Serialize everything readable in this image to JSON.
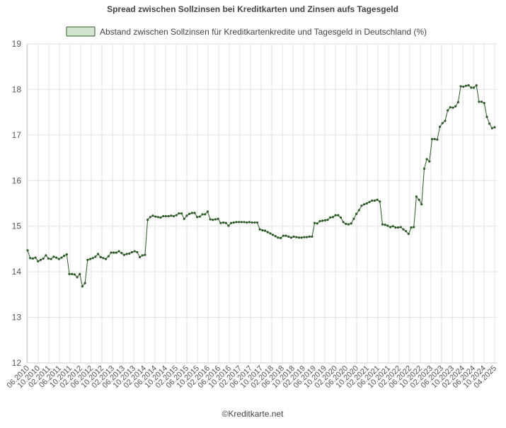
{
  "chart_data": {
    "type": "line",
    "title": "Spread zwischen Sollzinsen bei Kreditkarten und Zinsen aufs Tagesgeld",
    "legend": {
      "placement": "top-center"
    },
    "credit": "©Kreditkarte.net",
    "xlabel": "",
    "ylabel": "",
    "ylim": [
      12,
      19
    ],
    "yticks": [
      12,
      13,
      14,
      15,
      16,
      17,
      18,
      19
    ],
    "grid": true,
    "xtick_labels": [
      "06.2010",
      "10.2010",
      "02.2011",
      "06.2011",
      "10.2011",
      "02.2012",
      "06.2012",
      "10.2012",
      "02.2013",
      "06.2013",
      "10.2013",
      "02.2014",
      "06.2014",
      "10.2014",
      "02.2015",
      "06.2015",
      "10.2015",
      "02.2016",
      "06.2016",
      "10.2016",
      "02.2017",
      "06.2017",
      "10.2017",
      "02.2018",
      "06.2018",
      "10.2018",
      "02.2019",
      "06.2019",
      "10.2019",
      "02.2020",
      "06.2020",
      "10.2020",
      "02.2021",
      "06.2021",
      "10.2021",
      "02.2022",
      "06.2022",
      "10.2022",
      "02.2023",
      "06.2023",
      "10.2023",
      "02.2024",
      "06.2024",
      "10.2024",
      "04.2025"
    ],
    "colors": {
      "line": "#2d5a27",
      "legend_fill": "#d4e4d0",
      "legend_border": "#2d5a27"
    },
    "series": [
      {
        "name": "Abstand zwischen Sollzinsen für Kreditkartenkredite und Tagesgeld in Deutschland (%)",
        "values": [
          14.47,
          14.3,
          14.29,
          14.31,
          14.23,
          14.26,
          14.29,
          14.36,
          14.29,
          14.28,
          14.33,
          14.31,
          14.28,
          14.31,
          14.35,
          14.38,
          13.95,
          13.95,
          13.94,
          13.88,
          13.95,
          13.68,
          13.75,
          14.26,
          14.28,
          14.3,
          14.33,
          14.39,
          14.32,
          14.3,
          14.28,
          14.34,
          14.42,
          14.42,
          14.42,
          14.45,
          14.41,
          14.37,
          14.39,
          14.4,
          14.43,
          14.45,
          14.43,
          14.32,
          14.36,
          14.37,
          15.14,
          15.2,
          15.23,
          15.21,
          15.2,
          15.19,
          15.22,
          15.22,
          15.22,
          15.23,
          15.22,
          15.24,
          15.28,
          15.28,
          15.16,
          15.23,
          15.27,
          15.29,
          15.29,
          15.2,
          15.21,
          15.26,
          15.26,
          15.32,
          15.15,
          15.14,
          15.15,
          15.16,
          15.07,
          15.08,
          15.07,
          15.01,
          15.07,
          15.08,
          15.09,
          15.09,
          15.09,
          15.09,
          15.08,
          15.09,
          15.08,
          15.08,
          15.08,
          14.93,
          14.91,
          14.9,
          14.87,
          14.84,
          14.81,
          14.78,
          14.75,
          14.74,
          14.79,
          14.79,
          14.77,
          14.75,
          14.77,
          14.76,
          14.75,
          14.75,
          14.76,
          14.76,
          14.77,
          14.77,
          15.07,
          15.06,
          15.11,
          15.12,
          15.13,
          15.14,
          15.19,
          15.2,
          15.24,
          15.24,
          15.19,
          15.09,
          15.05,
          15.04,
          15.06,
          15.16,
          15.27,
          15.35,
          15.45,
          15.48,
          15.5,
          15.53,
          15.56,
          15.56,
          15.58,
          15.54,
          15.04,
          15.03,
          15.01,
          14.98,
          15.0,
          14.97,
          14.97,
          14.98,
          14.93,
          14.89,
          14.83,
          14.97,
          14.98,
          15.65,
          15.58,
          15.48,
          16.26,
          16.47,
          16.42,
          16.91,
          16.91,
          16.9,
          17.18,
          17.26,
          17.31,
          17.54,
          17.61,
          17.6,
          17.63,
          17.72,
          18.07,
          18.06,
          18.08,
          18.09,
          18.04,
          18.04,
          18.09,
          17.73,
          17.73,
          17.7,
          17.4,
          17.25,
          17.15,
          17.17
        ]
      }
    ]
  }
}
